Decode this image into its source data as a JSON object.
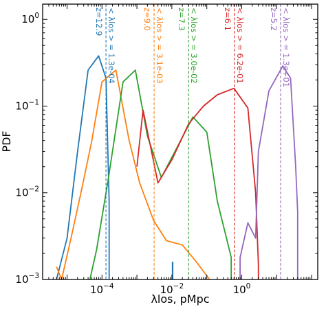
{
  "chart_data": {
    "type": "line",
    "xlabel": "λlos, pMpc",
    "ylabel": "PDF",
    "xscale": "log",
    "yscale": "log",
    "xlim": [
      2e-06,
      150
    ],
    "ylim": [
      0.001,
      1.5
    ],
    "grid": false,
    "xticks": [
      {
        "value": 0.0001,
        "base": "10",
        "exp": "−4"
      },
      {
        "value": 0.01,
        "base": "10",
        "exp": "−2"
      },
      {
        "value": 1,
        "base": "10",
        "exp": "0"
      }
    ],
    "yticks": [
      {
        "value": 0.001,
        "base": "10",
        "exp": "−3"
      },
      {
        "value": 0.01,
        "base": "10",
        "exp": "−2"
      },
      {
        "value": 0.1,
        "base": "10",
        "exp": "−1"
      },
      {
        "value": 1,
        "base": "10",
        "exp": "0"
      }
    ],
    "series": [
      {
        "color": "#1f77b4",
        "z_label": "z=12.9",
        "mean_label": "< λlos > = 1.3e-04",
        "mean": 0.00013,
        "x": [
          5e-06,
          1e-05,
          2e-05,
          4e-05,
          8e-05,
          0.00013,
          0.00016,
          0.00016
        ],
        "y": [
          0.001,
          0.003,
          0.03,
          0.26,
          0.38,
          0.21,
          0.008,
          0.001
        ],
        "spike_x": 0.0105,
        "spike_top": 0.0016
      },
      {
        "color": "#ff7f0e",
        "z_label": "z=9.0",
        "mean_label": "< λlos > = 3.1e-03",
        "mean": 0.0031,
        "x": [
          5e-06,
          7e-06,
          1.3e-05,
          2.5e-05,
          5e-05,
          0.0001,
          0.00025,
          0.0006,
          0.0012,
          0.003,
          0.007,
          0.02,
          0.05,
          0.12
        ],
        "y": [
          0.0014,
          0.001,
          0.003,
          0.01,
          0.038,
          0.19,
          0.26,
          0.04,
          0.013,
          0.0048,
          0.0028,
          0.0025,
          0.0016,
          0.001
        ]
      },
      {
        "color": "#2ca02c",
        "z_label": "z=7.3",
        "mean_label": "< λlos > = 3.0e-02",
        "mean": 0.03,
        "x": [
          4.5e-05,
          7e-05,
          0.00015,
          0.0004,
          0.0009,
          0.002,
          0.005,
          0.015,
          0.04,
          0.1,
          0.2,
          0.5,
          0.5
        ],
        "y": [
          0.001,
          0.0022,
          0.014,
          0.19,
          0.26,
          0.045,
          0.015,
          0.035,
          0.075,
          0.05,
          0.008,
          0.0018,
          0.001
        ]
      },
      {
        "color": "#d62728",
        "z_label": "z=6.1",
        "mean_label": "< λlos > = 6.2e-01",
        "mean": 0.62,
        "x": [
          0.001,
          0.0015,
          0.004,
          0.01,
          0.03,
          0.08,
          0.2,
          0.6,
          1.5,
          2.5,
          3.0,
          3.0
        ],
        "y": [
          0.02,
          0.09,
          0.013,
          0.024,
          0.062,
          0.1,
          0.135,
          0.16,
          0.095,
          0.01,
          0.0015,
          0.001
        ]
      },
      {
        "color": "#9467bd",
        "z_label": "z=5.2",
        "mean_label": "< λlos > = 1.3e+01",
        "mean": 13,
        "x": [
          0.9,
          0.9,
          1.5,
          2.5,
          3.0,
          6.0,
          15.0,
          25.0,
          35.0,
          40.0,
          40.0
        ],
        "y": [
          0.001,
          0.0018,
          0.0045,
          0.003,
          0.03,
          0.15,
          0.29,
          0.21,
          0.02,
          0.006,
          0.001
        ]
      }
    ]
  }
}
